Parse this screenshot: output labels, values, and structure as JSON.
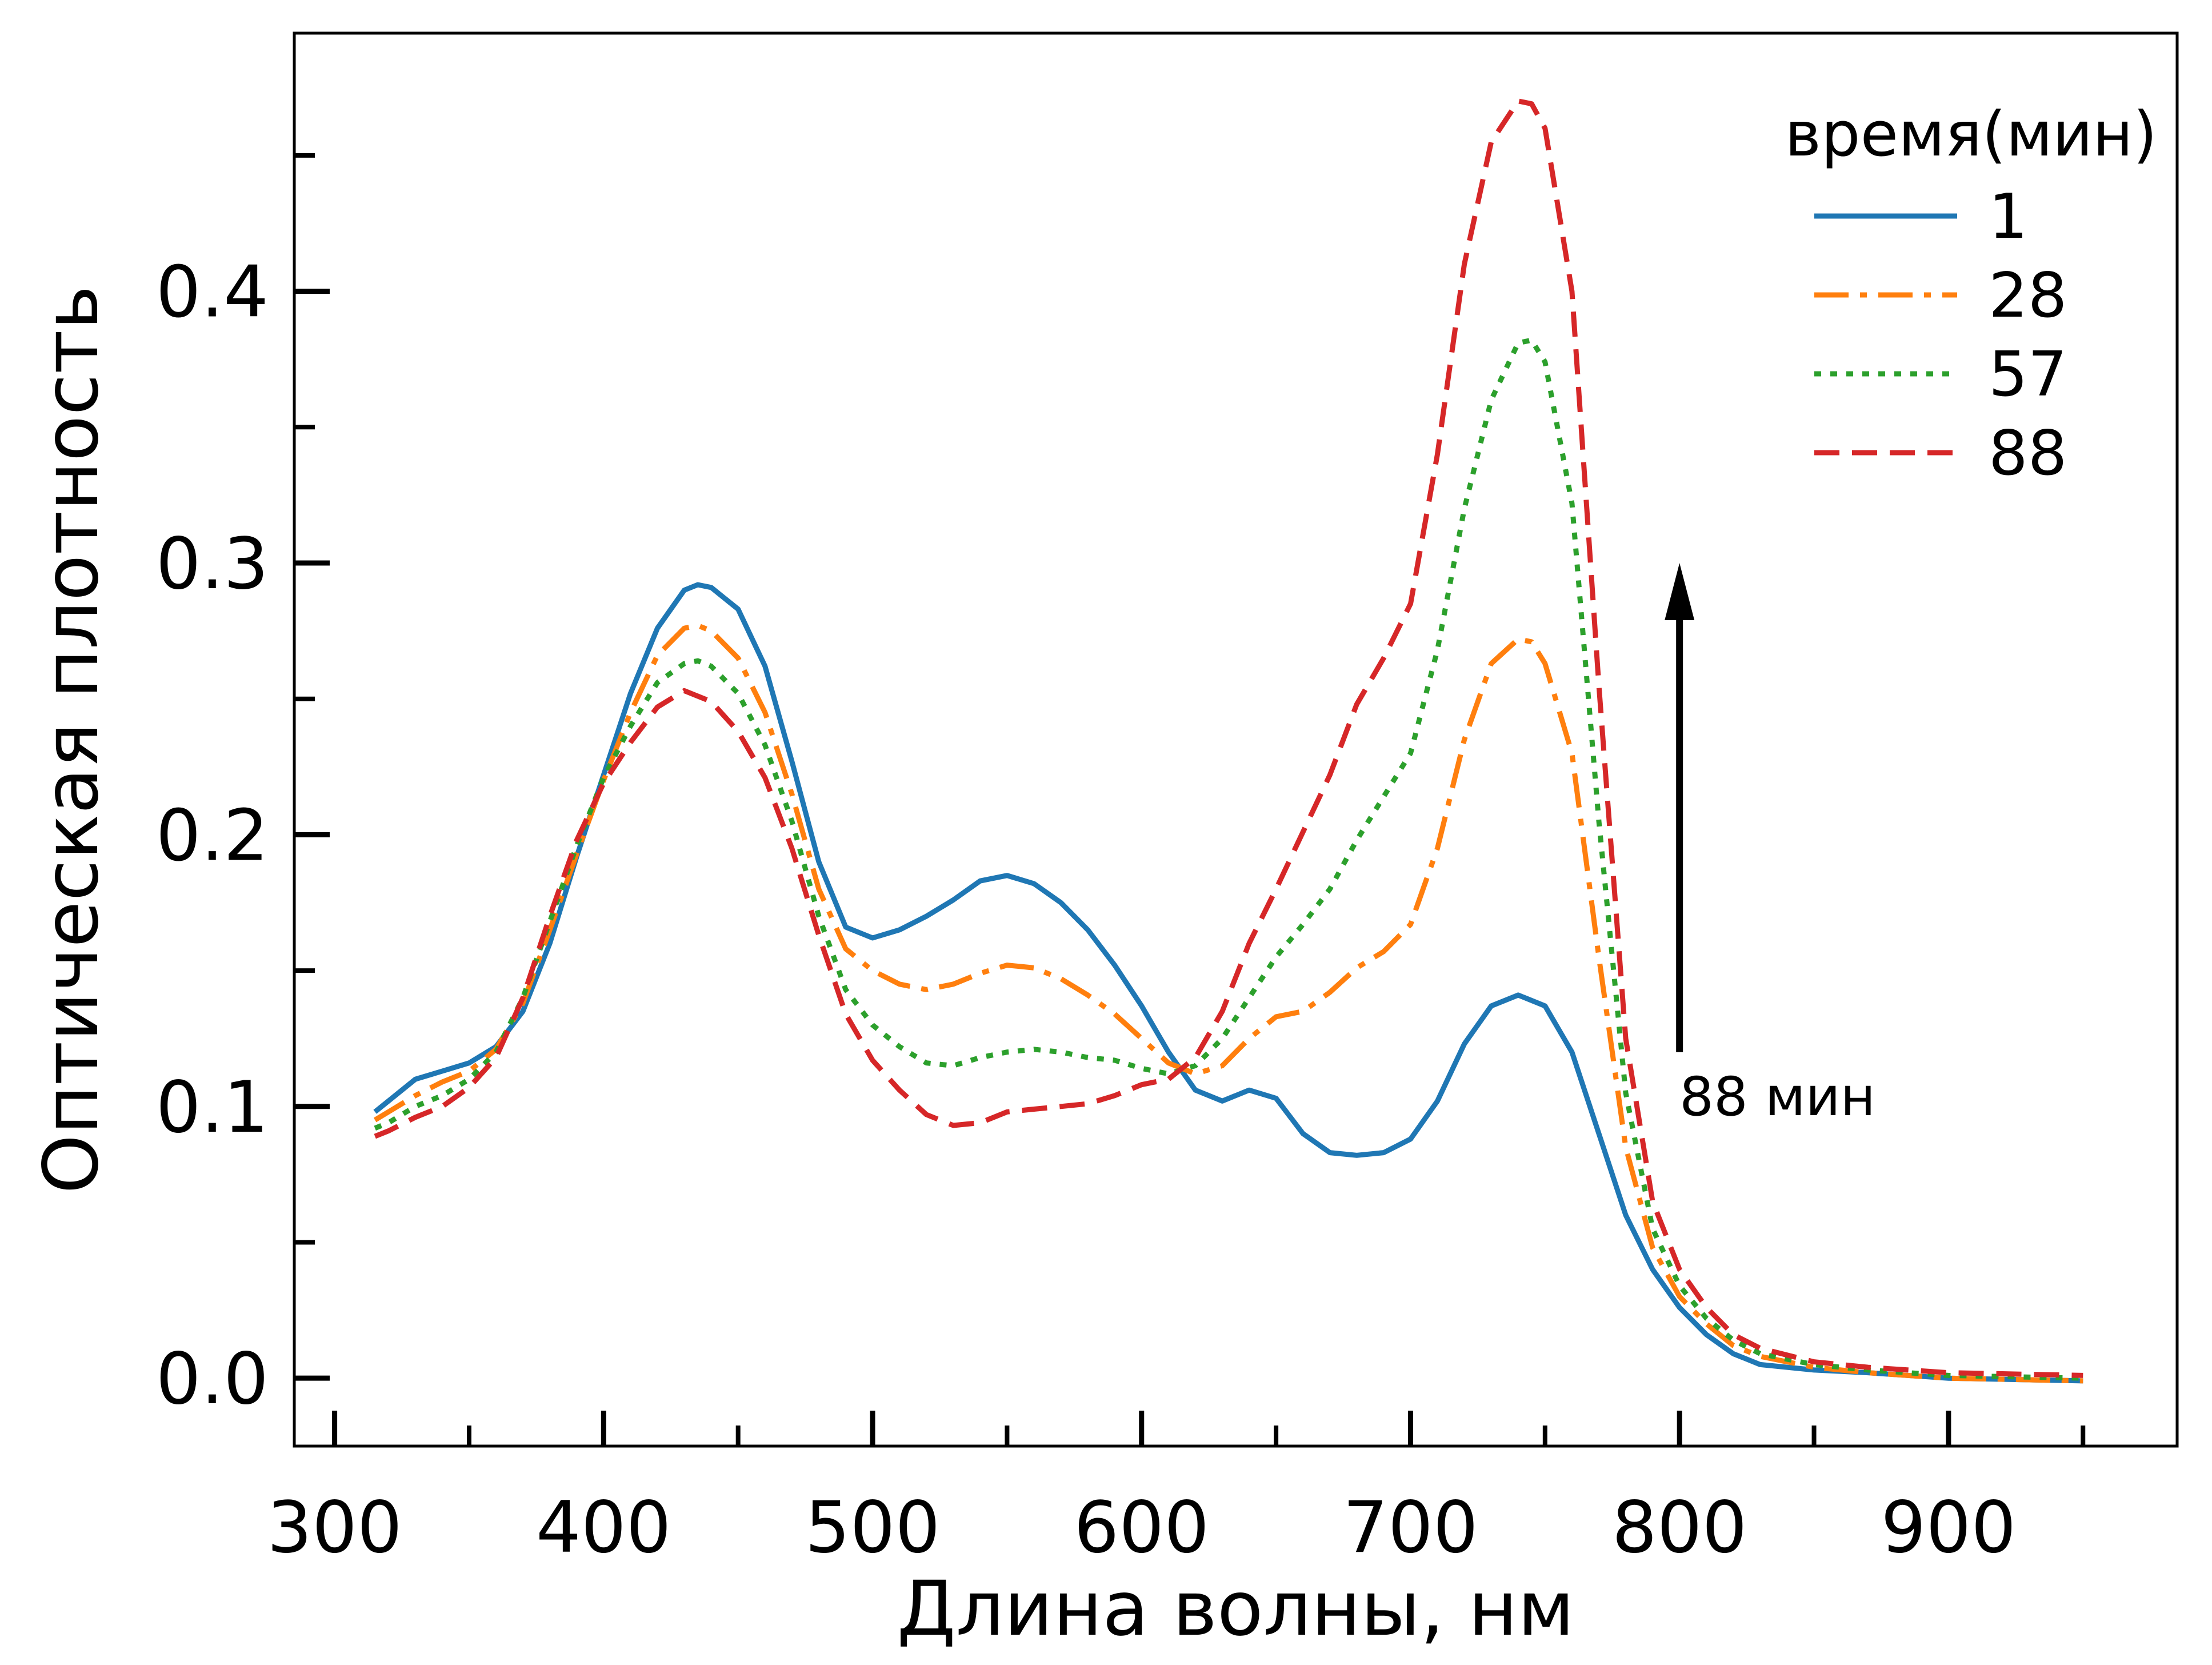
{
  "chart_data": {
    "type": "line",
    "title": "",
    "xlabel": "Длина волны, нм",
    "ylabel": "Оптическая плотность",
    "xlim": [
      285,
      985
    ],
    "ylim": [
      -0.025,
      0.495
    ],
    "x_ticks": [
      300,
      400,
      500,
      600,
      700,
      800,
      900
    ],
    "x_tick_labels": [
      "300",
      "400",
      "500",
      "600",
      "700",
      "800",
      "900"
    ],
    "x_minor_ticks": [
      350,
      450,
      550,
      650,
      750,
      850,
      950
    ],
    "y_ticks": [
      0.0,
      0.1,
      0.2,
      0.3,
      0.4
    ],
    "y_tick_labels": [
      "0.0",
      "0.1",
      "0.2",
      "0.3",
      "0.4"
    ],
    "y_minor_ticks": [
      0.05,
      0.15,
      0.25,
      0.35,
      0.45
    ],
    "grid": false,
    "legend": {
      "title": "время(мин)",
      "position": "top-right"
    },
    "annotation": {
      "text": "88 мин",
      "arrow_x": 800,
      "arrow_from_y": 0.12,
      "arrow_to_y": 0.3
    },
    "series": [
      {
        "name": "1",
        "color": "#1f77b4",
        "dash": "solid",
        "points": [
          [
            315,
            0.098
          ],
          [
            320,
            0.102
          ],
          [
            330,
            0.11
          ],
          [
            340,
            0.113
          ],
          [
            350,
            0.116
          ],
          [
            360,
            0.122
          ],
          [
            370,
            0.135
          ],
          [
            380,
            0.16
          ],
          [
            390,
            0.192
          ],
          [
            400,
            0.222
          ],
          [
            410,
            0.252
          ],
          [
            420,
            0.276
          ],
          [
            430,
            0.29
          ],
          [
            435,
            0.292
          ],
          [
            440,
            0.291
          ],
          [
            450,
            0.283
          ],
          [
            460,
            0.262
          ],
          [
            470,
            0.227
          ],
          [
            480,
            0.19
          ],
          [
            490,
            0.166
          ],
          [
            500,
            0.162
          ],
          [
            510,
            0.165
          ],
          [
            520,
            0.17
          ],
          [
            530,
            0.176
          ],
          [
            540,
            0.183
          ],
          [
            550,
            0.185
          ],
          [
            560,
            0.182
          ],
          [
            570,
            0.175
          ],
          [
            580,
            0.165
          ],
          [
            590,
            0.152
          ],
          [
            600,
            0.137
          ],
          [
            610,
            0.12
          ],
          [
            620,
            0.106
          ],
          [
            630,
            0.102
          ],
          [
            640,
            0.106
          ],
          [
            650,
            0.103
          ],
          [
            660,
            0.09
          ],
          [
            670,
            0.083
          ],
          [
            680,
            0.082
          ],
          [
            690,
            0.083
          ],
          [
            700,
            0.088
          ],
          [
            710,
            0.102
          ],
          [
            720,
            0.123
          ],
          [
            730,
            0.137
          ],
          [
            740,
            0.141
          ],
          [
            750,
            0.137
          ],
          [
            760,
            0.12
          ],
          [
            770,
            0.09
          ],
          [
            780,
            0.06
          ],
          [
            790,
            0.04
          ],
          [
            800,
            0.026
          ],
          [
            810,
            0.016
          ],
          [
            820,
            0.009
          ],
          [
            830,
            0.005
          ],
          [
            850,
            0.003
          ],
          [
            870,
            0.002
          ],
          [
            900,
            0.0
          ],
          [
            950,
            -0.001
          ]
        ]
      },
      {
        "name": "28",
        "color": "#ff7f0e",
        "dash": "dashdot",
        "points": [
          [
            315,
            0.095
          ],
          [
            320,
            0.098
          ],
          [
            330,
            0.104
          ],
          [
            340,
            0.109
          ],
          [
            350,
            0.113
          ],
          [
            360,
            0.121
          ],
          [
            370,
            0.138
          ],
          [
            380,
            0.165
          ],
          [
            390,
            0.193
          ],
          [
            400,
            0.22
          ],
          [
            410,
            0.245
          ],
          [
            420,
            0.266
          ],
          [
            430,
            0.276
          ],
          [
            435,
            0.277
          ],
          [
            440,
            0.275
          ],
          [
            450,
            0.265
          ],
          [
            460,
            0.245
          ],
          [
            470,
            0.215
          ],
          [
            480,
            0.18
          ],
          [
            490,
            0.158
          ],
          [
            500,
            0.15
          ],
          [
            510,
            0.145
          ],
          [
            520,
            0.143
          ],
          [
            530,
            0.145
          ],
          [
            540,
            0.149
          ],
          [
            550,
            0.152
          ],
          [
            560,
            0.151
          ],
          [
            570,
            0.147
          ],
          [
            580,
            0.141
          ],
          [
            590,
            0.134
          ],
          [
            600,
            0.125
          ],
          [
            610,
            0.116
          ],
          [
            620,
            0.112
          ],
          [
            630,
            0.115
          ],
          [
            640,
            0.125
          ],
          [
            650,
            0.133
          ],
          [
            660,
            0.135
          ],
          [
            670,
            0.142
          ],
          [
            680,
            0.151
          ],
          [
            690,
            0.157
          ],
          [
            700,
            0.167
          ],
          [
            710,
            0.195
          ],
          [
            720,
            0.235
          ],
          [
            730,
            0.263
          ],
          [
            740,
            0.272
          ],
          [
            745,
            0.271
          ],
          [
            750,
            0.263
          ],
          [
            760,
            0.23
          ],
          [
            770,
            0.155
          ],
          [
            780,
            0.085
          ],
          [
            790,
            0.048
          ],
          [
            800,
            0.03
          ],
          [
            810,
            0.02
          ],
          [
            820,
            0.012
          ],
          [
            830,
            0.008
          ],
          [
            850,
            0.004
          ],
          [
            870,
            0.002
          ],
          [
            900,
            0.0
          ],
          [
            950,
            -0.001
          ]
        ]
      },
      {
        "name": "57",
        "color": "#2ca02c",
        "dash": "dotted",
        "points": [
          [
            315,
            0.092
          ],
          [
            320,
            0.094
          ],
          [
            330,
            0.1
          ],
          [
            340,
            0.104
          ],
          [
            350,
            0.11
          ],
          [
            360,
            0.12
          ],
          [
            370,
            0.14
          ],
          [
            380,
            0.168
          ],
          [
            390,
            0.196
          ],
          [
            400,
            0.221
          ],
          [
            410,
            0.24
          ],
          [
            420,
            0.256
          ],
          [
            430,
            0.263
          ],
          [
            435,
            0.264
          ],
          [
            440,
            0.262
          ],
          [
            450,
            0.252
          ],
          [
            460,
            0.233
          ],
          [
            470,
            0.205
          ],
          [
            480,
            0.17
          ],
          [
            490,
            0.143
          ],
          [
            500,
            0.13
          ],
          [
            510,
            0.122
          ],
          [
            520,
            0.116
          ],
          [
            530,
            0.115
          ],
          [
            540,
            0.118
          ],
          [
            550,
            0.12
          ],
          [
            560,
            0.121
          ],
          [
            570,
            0.12
          ],
          [
            580,
            0.118
          ],
          [
            590,
            0.117
          ],
          [
            600,
            0.114
          ],
          [
            610,
            0.112
          ],
          [
            620,
            0.115
          ],
          [
            630,
            0.125
          ],
          [
            640,
            0.14
          ],
          [
            650,
            0.155
          ],
          [
            660,
            0.167
          ],
          [
            670,
            0.18
          ],
          [
            680,
            0.198
          ],
          [
            690,
            0.214
          ],
          [
            700,
            0.23
          ],
          [
            710,
            0.268
          ],
          [
            720,
            0.32
          ],
          [
            730,
            0.36
          ],
          [
            740,
            0.381
          ],
          [
            745,
            0.382
          ],
          [
            750,
            0.374
          ],
          [
            760,
            0.322
          ],
          [
            770,
            0.205
          ],
          [
            780,
            0.105
          ],
          [
            790,
            0.055
          ],
          [
            800,
            0.034
          ],
          [
            810,
            0.022
          ],
          [
            820,
            0.014
          ],
          [
            830,
            0.009
          ],
          [
            850,
            0.005
          ],
          [
            870,
            0.003
          ],
          [
            900,
            0.001
          ],
          [
            950,
            0.0
          ]
        ]
      },
      {
        "name": "88",
        "color": "#d62728",
        "dash": "dashed",
        "points": [
          [
            315,
            0.089
          ],
          [
            320,
            0.091
          ],
          [
            330,
            0.096
          ],
          [
            340,
            0.1
          ],
          [
            350,
            0.107
          ],
          [
            360,
            0.118
          ],
          [
            370,
            0.14
          ],
          [
            380,
            0.17
          ],
          [
            390,
            0.198
          ],
          [
            400,
            0.219
          ],
          [
            410,
            0.234
          ],
          [
            420,
            0.247
          ],
          [
            430,
            0.253
          ],
          [
            440,
            0.249
          ],
          [
            450,
            0.238
          ],
          [
            460,
            0.221
          ],
          [
            470,
            0.195
          ],
          [
            480,
            0.163
          ],
          [
            490,
            0.134
          ],
          [
            500,
            0.117
          ],
          [
            510,
            0.106
          ],
          [
            520,
            0.097
          ],
          [
            530,
            0.093
          ],
          [
            540,
            0.094
          ],
          [
            550,
            0.098
          ],
          [
            560,
            0.099
          ],
          [
            570,
            0.1
          ],
          [
            580,
            0.101
          ],
          [
            590,
            0.104
          ],
          [
            600,
            0.108
          ],
          [
            610,
            0.11
          ],
          [
            620,
            0.118
          ],
          [
            630,
            0.135
          ],
          [
            640,
            0.16
          ],
          [
            650,
            0.18
          ],
          [
            660,
            0.201
          ],
          [
            670,
            0.222
          ],
          [
            680,
            0.248
          ],
          [
            690,
            0.265
          ],
          [
            700,
            0.285
          ],
          [
            710,
            0.34
          ],
          [
            720,
            0.41
          ],
          [
            730,
            0.455
          ],
          [
            740,
            0.47
          ],
          [
            745,
            0.469
          ],
          [
            750,
            0.46
          ],
          [
            760,
            0.4
          ],
          [
            770,
            0.255
          ],
          [
            780,
            0.125
          ],
          [
            790,
            0.065
          ],
          [
            800,
            0.04
          ],
          [
            810,
            0.026
          ],
          [
            820,
            0.016
          ],
          [
            830,
            0.011
          ],
          [
            850,
            0.006
          ],
          [
            870,
            0.004
          ],
          [
            900,
            0.002
          ],
          [
            950,
            0.001
          ]
        ]
      }
    ]
  }
}
